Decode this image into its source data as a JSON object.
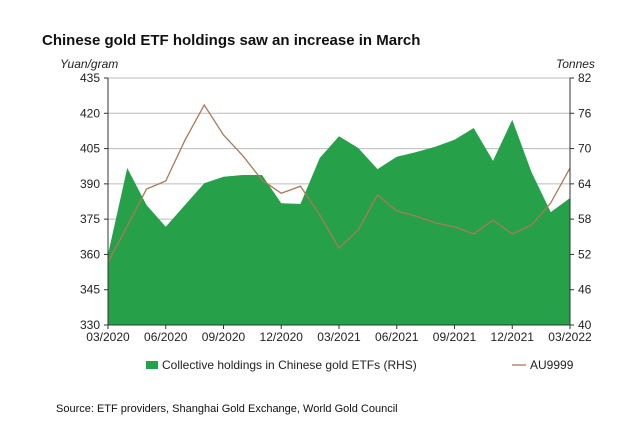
{
  "chart_data": {
    "type": "area+line",
    "title": "Chinese gold ETF holdings saw an increase in March",
    "ylabel_left": "Yuan/gram",
    "ylabel_right": "Tonnes",
    "ylim_left": [
      330,
      435
    ],
    "yticks_left": [
      "330",
      "345",
      "360",
      "375",
      "390",
      "405",
      "420",
      "435"
    ],
    "ylim_right": [
      40,
      82
    ],
    "yticks_right": [
      "40",
      "46",
      "52",
      "58",
      "64",
      "70",
      "76",
      "82"
    ],
    "xtick_labels": [
      "03/2020",
      "06/2020",
      "09/2020",
      "12/2020",
      "03/2021",
      "06/2021",
      "09/2021",
      "12/2021",
      "03/2022"
    ],
    "x": [
      "03/2020",
      "04/2020",
      "05/2020",
      "06/2020",
      "07/2020",
      "08/2020",
      "09/2020",
      "10/2020",
      "11/2020",
      "12/2020",
      "01/2021",
      "02/2021",
      "03/2021",
      "04/2021",
      "05/2021",
      "06/2021",
      "07/2021",
      "08/2021",
      "09/2021",
      "10/2021",
      "11/2021",
      "12/2021",
      "01/2022",
      "02/2022",
      "03/2022"
    ],
    "series": [
      {
        "name": "Collective holdings in Chinese gold ETFs (RHS)",
        "axis": "right",
        "type": "area",
        "color": "#27a04a",
        "values": [
          52.0,
          66.7,
          60.4,
          56.7,
          60.4,
          64.1,
          65.2,
          65.5,
          65.5,
          60.7,
          60.6,
          68.4,
          72.1,
          70.1,
          66.5,
          68.6,
          69.4,
          70.3,
          71.5,
          73.5,
          67.9,
          74.9,
          66.0,
          59.2,
          61.6
        ]
      },
      {
        "name": "AU9999",
        "axis": "left",
        "type": "line",
        "color": "#a87a5a",
        "values": [
          356.8,
          372.0,
          387.8,
          391.2,
          408.6,
          423.5,
          410.8,
          402.0,
          391.6,
          386.0,
          389.0,
          376.8,
          362.7,
          370.4,
          385.3,
          378.5,
          376.3,
          373.4,
          371.7,
          368.7,
          374.6,
          368.7,
          372.5,
          381.9,
          396.7
        ]
      }
    ],
    "grid": true,
    "legend": "bottom"
  },
  "source": "Source: ETF providers, Shanghai Gold Exchange, World Gold Council"
}
